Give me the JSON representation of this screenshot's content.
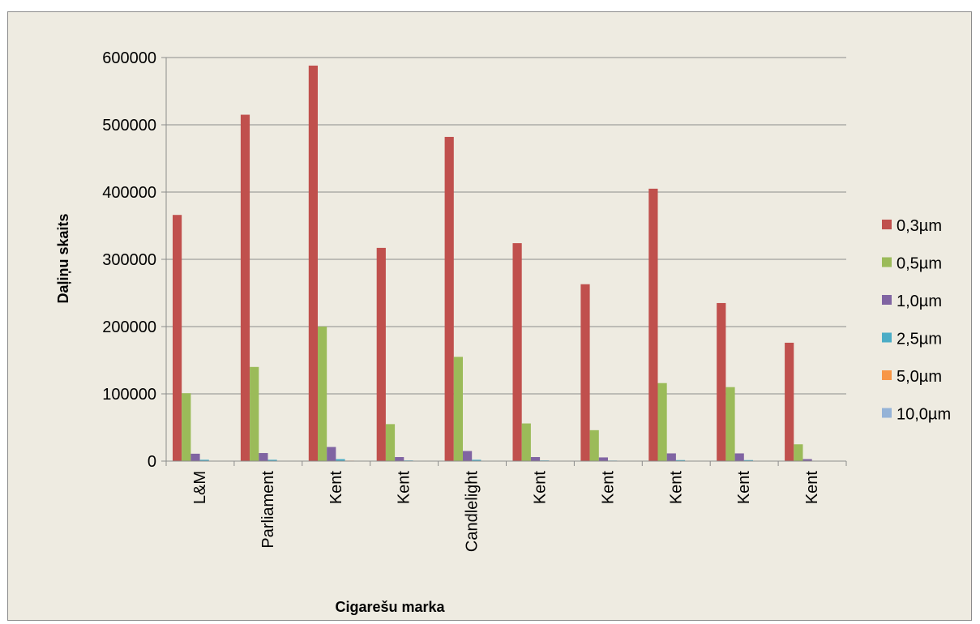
{
  "chart_data": {
    "type": "bar",
    "title": "",
    "xlabel": "Cigarešu marka",
    "ylabel": "Daļiņu skaits",
    "ylim": [
      0,
      600000
    ],
    "yticks": [
      0,
      100000,
      200000,
      300000,
      400000,
      500000,
      600000
    ],
    "grid": true,
    "legend_position": "right",
    "categories": [
      "L&M",
      "Parliament",
      "Kent",
      "Kent",
      "Candlelight",
      "Kent",
      "Kent",
      "Kent",
      "Kent",
      "Kent"
    ],
    "series": [
      {
        "name": "0,3µm",
        "color": "#c0504d",
        "values": [
          366000,
          515000,
          588000,
          317000,
          482000,
          324000,
          263000,
          405000,
          235000,
          176000
        ]
      },
      {
        "name": "0,5µm",
        "color": "#9bbb59",
        "values": [
          101000,
          140000,
          200000,
          55000,
          155000,
          56000,
          46000,
          116000,
          110000,
          25000
        ]
      },
      {
        "name": "1,0µm",
        "color": "#8064a2",
        "values": [
          11000,
          12000,
          21000,
          6000,
          15000,
          6000,
          5500,
          11500,
          11500,
          3000
        ]
      },
      {
        "name": "2,5µm",
        "color": "#4bacc6",
        "values": [
          2000,
          2000,
          3000,
          1000,
          2000,
          1000,
          800,
          1500,
          1500,
          600
        ]
      },
      {
        "name": "5,0µm",
        "color": "#f79646",
        "values": [
          500,
          500,
          700,
          300,
          500,
          300,
          200,
          400,
          400,
          150
        ]
      },
      {
        "name": "10,0µm",
        "color": "#95b3d7",
        "values": [
          300,
          300,
          400,
          200,
          300,
          200,
          150,
          250,
          250,
          100
        ]
      }
    ]
  }
}
